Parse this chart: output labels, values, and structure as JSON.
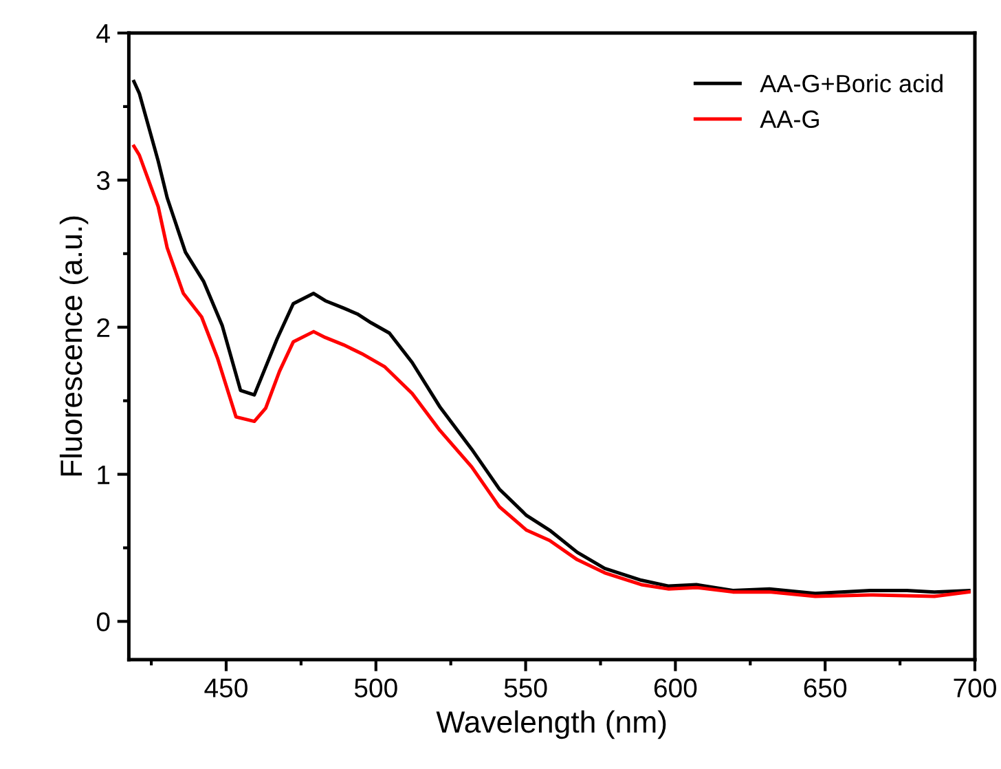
{
  "chart_data": {
    "type": "line",
    "xlabel": "Wavelength (nm)",
    "ylabel": "Fluorescence (a.u.)",
    "xlim": [
      417.5,
      700
    ],
    "ylim": [
      -0.26,
      4
    ],
    "xticks": [
      450,
      500,
      550,
      600,
      650,
      700
    ],
    "yticks": [
      0,
      1,
      2,
      3,
      4
    ],
    "grid": false,
    "legend": "top right",
    "marker": "none",
    "line_style": "solid",
    "series": [
      {
        "name": "AA-G+Boric acid",
        "color": "#000000",
        "x": [
          419.2,
          421,
          427.3,
          430.3,
          436.4,
          442.5,
          448.7,
          454.8,
          459.4,
          467,
          472.4,
          479.2,
          483.1,
          489.2,
          493.8,
          498.4,
          504.5,
          512.1,
          521.3,
          532,
          541.2,
          550.3,
          558,
          567.2,
          576.4,
          588.6,
          597.8,
          607,
          619.2,
          631.4,
          646.7,
          665,
          677.3,
          686.5,
          698
        ],
        "values": [
          3.67,
          3.59,
          3.13,
          2.88,
          2.51,
          2.31,
          2.01,
          1.57,
          1.54,
          1.92,
          2.16,
          2.23,
          2.18,
          2.13,
          2.09,
          2.03,
          1.96,
          1.76,
          1.46,
          1.17,
          0.9,
          0.72,
          0.62,
          0.47,
          0.36,
          0.28,
          0.24,
          0.25,
          0.21,
          0.22,
          0.19,
          0.21,
          0.21,
          0.2,
          0.21
        ]
      },
      {
        "name": "AA-G",
        "color": "#ff0000",
        "x": [
          419.2,
          421,
          427.3,
          430.3,
          435.7,
          441.8,
          447.1,
          453.3,
          459.4,
          463.2,
          467.8,
          472.4,
          479.2,
          483.1,
          489.2,
          495.3,
          503,
          512.1,
          521.3,
          532,
          541.2,
          550.3,
          558,
          567.2,
          576.4,
          588.6,
          597.8,
          607,
          619.2,
          631.4,
          646.7,
          665,
          686.5,
          698
        ],
        "values": [
          3.23,
          3.17,
          2.82,
          2.54,
          2.23,
          2.07,
          1.79,
          1.39,
          1.36,
          1.45,
          1.7,
          1.9,
          1.97,
          1.93,
          1.88,
          1.82,
          1.73,
          1.55,
          1.3,
          1.05,
          0.78,
          0.62,
          0.55,
          0.42,
          0.33,
          0.25,
          0.22,
          0.23,
          0.2,
          0.2,
          0.17,
          0.18,
          0.17,
          0.2
        ]
      }
    ]
  }
}
